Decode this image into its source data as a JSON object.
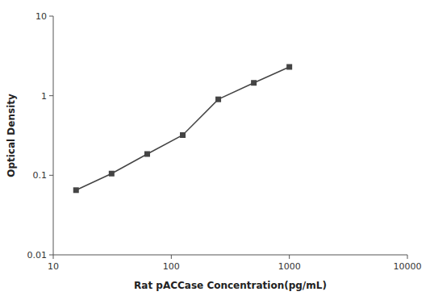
{
  "chart_data": {
    "type": "line",
    "x": [
      15.6,
      31.2,
      62.5,
      125,
      250,
      500,
      1000
    ],
    "values": [
      0.065,
      0.105,
      0.185,
      0.32,
      0.9,
      1.45,
      2.3
    ],
    "xlabel": "Rat pACCase Concentration(pg/mL)",
    "ylabel": "Optical Density",
    "xlim": [
      10,
      10000
    ],
    "ylim": [
      0.01,
      10
    ],
    "xticks": [
      10,
      100,
      1000,
      10000
    ],
    "yticks": [
      0.01,
      0.1,
      1,
      10
    ],
    "log": true,
    "color": "#444444",
    "marker": "square"
  }
}
